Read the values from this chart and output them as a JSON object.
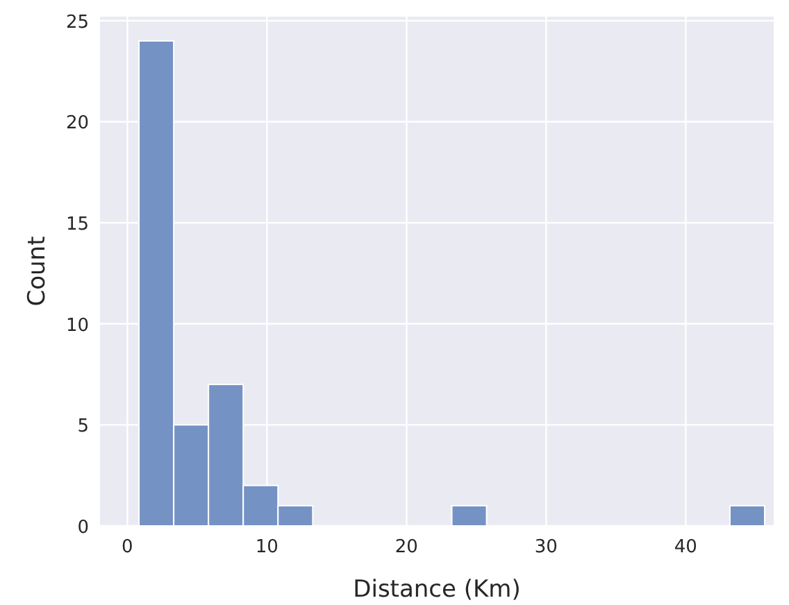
{
  "chart_data": {
    "type": "histogram",
    "xlabel": "Distance (Km)",
    "ylabel": "Count",
    "bins": [
      0.83,
      3.32,
      5.81,
      8.3,
      10.79,
      13.28,
      15.77,
      18.26,
      20.75,
      23.24,
      25.73,
      28.22,
      30.71,
      33.2,
      35.69,
      38.18,
      40.67,
      43.16,
      45.65
    ],
    "values": [
      24,
      5,
      7,
      2,
      1,
      0,
      0,
      0,
      0,
      1,
      0,
      0,
      0,
      0,
      0,
      0,
      0,
      1
    ],
    "color": "#7492c4",
    "xlim": [
      -1.96,
      46.3
    ],
    "ylim": [
      0,
      25.2
    ],
    "xticks": [
      0,
      10,
      20,
      30,
      40
    ],
    "yticks": [
      0,
      5,
      10,
      15,
      20,
      25
    ],
    "grid": true
  }
}
